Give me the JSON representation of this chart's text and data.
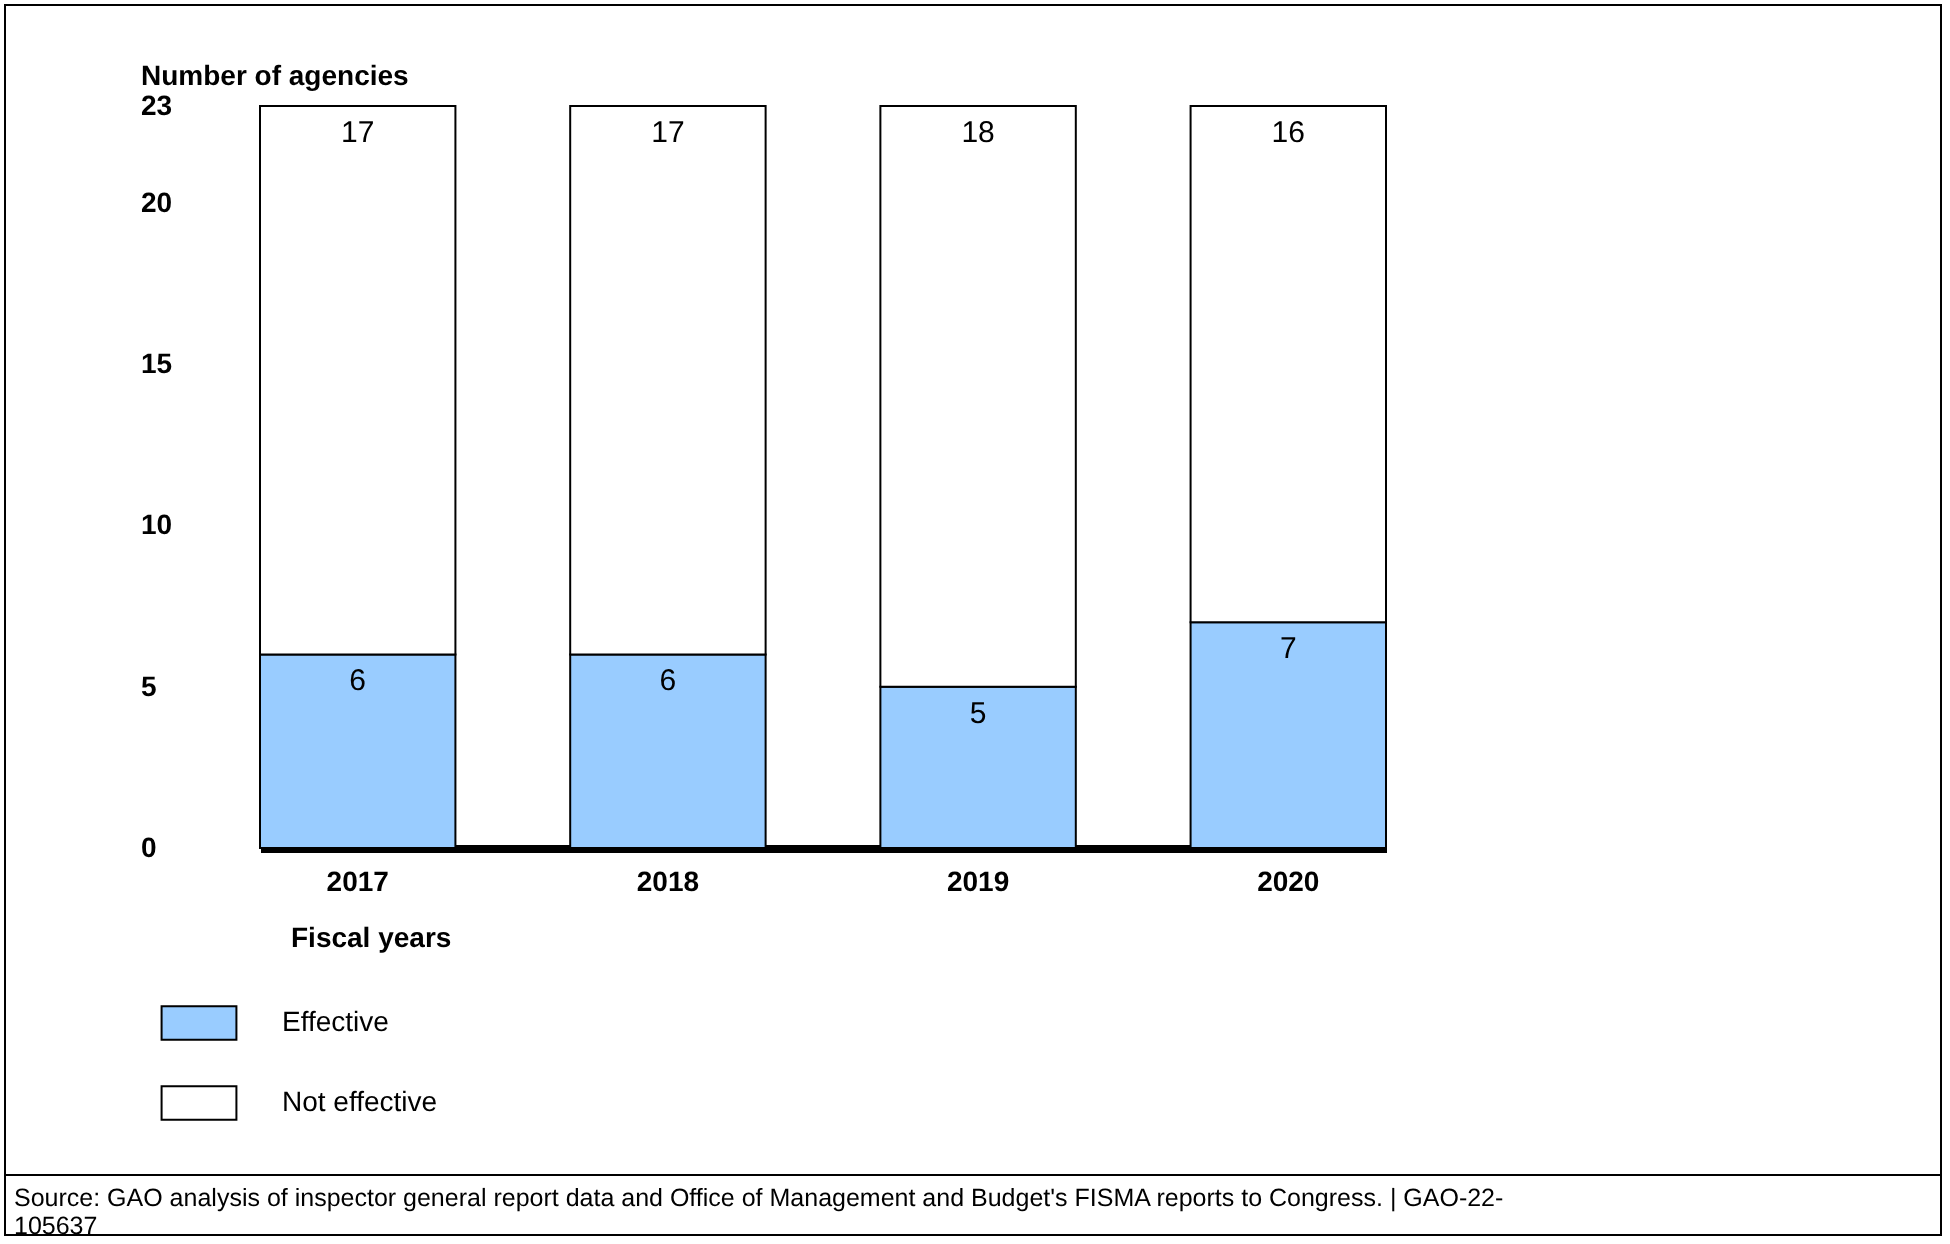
{
  "chart_data": {
    "type": "bar",
    "stacked": true,
    "categories": [
      "2017",
      "2018",
      "2019",
      "2020"
    ],
    "series": [
      {
        "name": "Effective",
        "color": "#99ccff",
        "values": [
          6,
          6,
          5,
          7
        ]
      },
      {
        "name": "Not effective",
        "color": "#ffffff",
        "values": [
          17,
          17,
          18,
          16
        ]
      }
    ],
    "ylabel": "Number of agencies",
    "xlabel": "Fiscal years",
    "ylim": [
      0,
      23
    ],
    "yticks": [
      0,
      5,
      10,
      15,
      20,
      23
    ],
    "data_labels": true,
    "grid": false,
    "legend": "bottom left",
    "annotations": [
      "Source: GAO analysis of inspector general report data and Office of Management and Budget's FISMA reports to Congress.  |  GAO-22-105637"
    ]
  }
}
